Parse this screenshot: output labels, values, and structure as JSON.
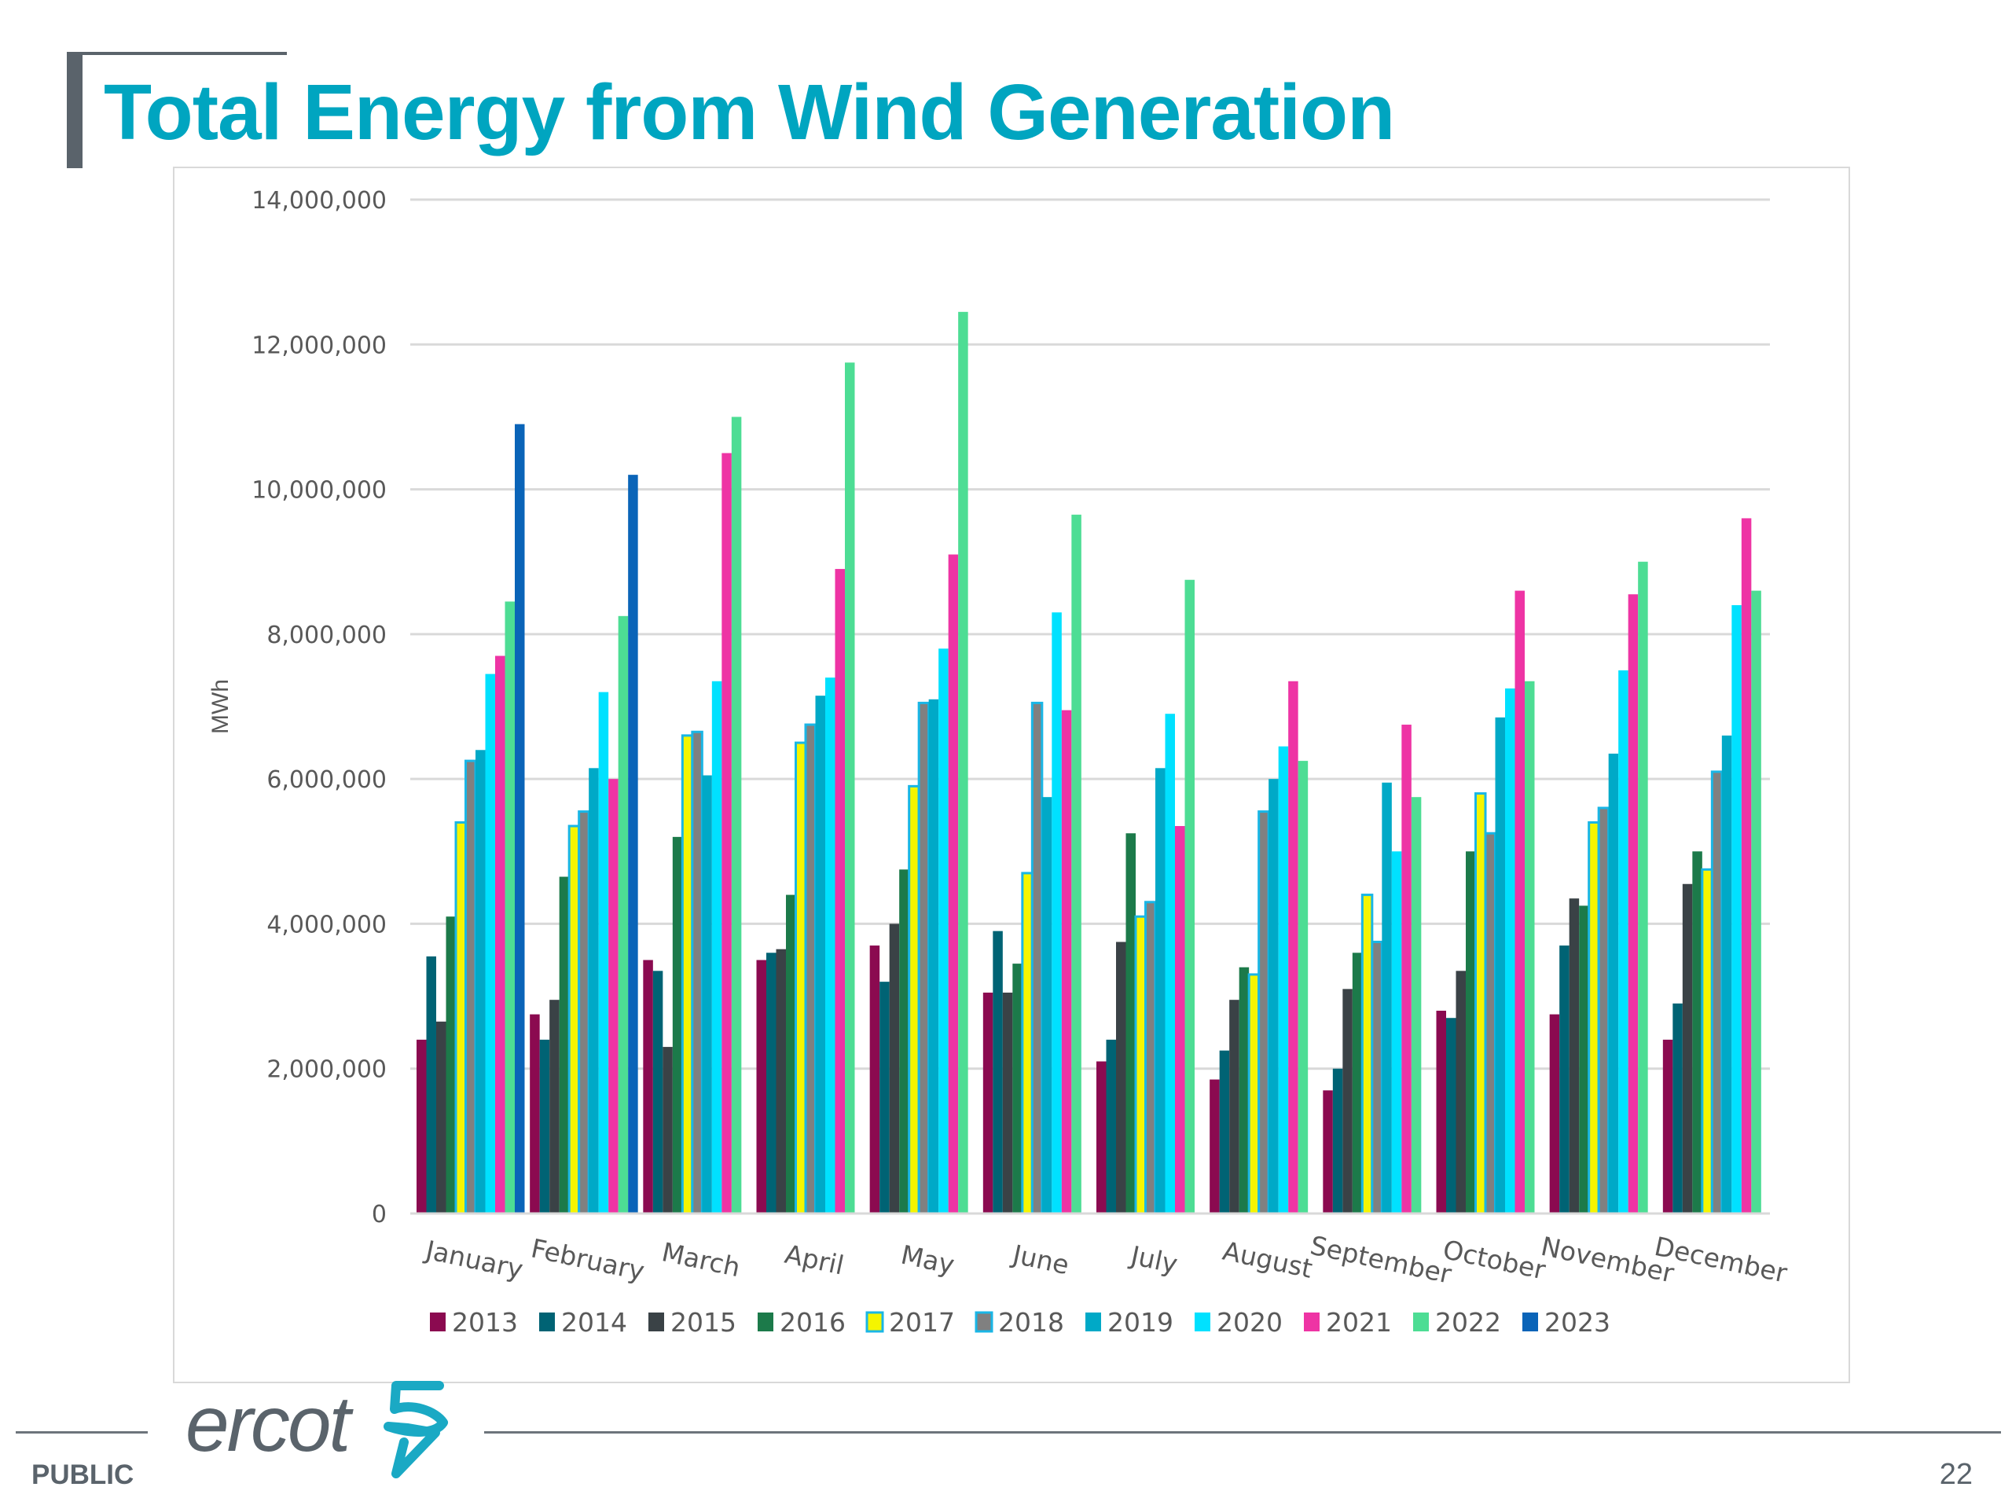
{
  "page": {
    "title": "Total Energy from Wind Generation",
    "classification": "PUBLIC",
    "page_number": "22",
    "logo_text": "ercot"
  },
  "colors": {
    "title": "#00a5c0",
    "logo_mark": "#1aa9c4",
    "text_gray": "#5a636b"
  },
  "chart_data": {
    "type": "bar",
    "title": "",
    "xlabel": "",
    "ylabel": "MWh",
    "ylim": [
      0,
      14000000
    ],
    "yticks": [
      0,
      2000000,
      4000000,
      6000000,
      8000000,
      10000000,
      12000000,
      14000000
    ],
    "ytick_labels": [
      "0",
      "2,000,000",
      "4,000,000",
      "6,000,000",
      "8,000,000",
      "10,000,000",
      "12,000,000",
      "14,000,000"
    ],
    "grid": true,
    "legend_position": "bottom",
    "categories": [
      "January",
      "February",
      "March",
      "April",
      "May",
      "June",
      "July",
      "August",
      "September",
      "October",
      "November",
      "December"
    ],
    "series": [
      {
        "name": "2013",
        "color": "#8b0a50",
        "values": [
          2400000,
          2750000,
          3500000,
          3500000,
          3700000,
          3050000,
          2100000,
          1850000,
          1700000,
          2800000,
          2750000,
          2400000
        ]
      },
      {
        "name": "2014",
        "color": "#006374",
        "values": [
          3550000,
          2400000,
          3350000,
          3600000,
          3200000,
          3900000,
          2400000,
          2250000,
          2000000,
          2700000,
          3700000,
          2900000
        ]
      },
      {
        "name": "2015",
        "color": "#3a4246",
        "values": [
          2650000,
          2950000,
          2300000,
          3650000,
          4000000,
          3050000,
          3750000,
          2950000,
          3100000,
          3350000,
          4350000,
          4550000
        ]
      },
      {
        "name": "2016",
        "color": "#1c7a4a",
        "values": [
          4100000,
          4650000,
          5200000,
          4400000,
          4750000,
          3450000,
          5250000,
          3400000,
          3600000,
          5000000,
          4250000,
          5000000
        ]
      },
      {
        "name": "2017",
        "color": "#f5f500",
        "border": "#19b6e6",
        "values": [
          5400000,
          5350000,
          6600000,
          6500000,
          5900000,
          4700000,
          4100000,
          3300000,
          4400000,
          5800000,
          5400000,
          4750000
        ]
      },
      {
        "name": "2018",
        "color": "#808080",
        "border": "#19b6e6",
        "values": [
          6250000,
          5550000,
          6650000,
          6750000,
          7050000,
          7050000,
          4300000,
          5550000,
          3750000,
          5250000,
          5600000,
          6100000
        ]
      },
      {
        "name": "2019",
        "color": "#00a9c7",
        "values": [
          6400000,
          6150000,
          6050000,
          7150000,
          7100000,
          5750000,
          6150000,
          6000000,
          5950000,
          6850000,
          6350000,
          6600000
        ]
      },
      {
        "name": "2020",
        "color": "#00e1ff",
        "values": [
          7450000,
          7200000,
          7350000,
          7400000,
          7800000,
          8300000,
          6900000,
          6450000,
          5000000,
          7250000,
          7500000,
          8400000
        ]
      },
      {
        "name": "2021",
        "color": "#ee34a4",
        "values": [
          7700000,
          6000000,
          10500000,
          8900000,
          9100000,
          6950000,
          5350000,
          7350000,
          6750000,
          8600000,
          8550000,
          9600000
        ]
      },
      {
        "name": "2022",
        "color": "#4ddd94",
        "values": [
          8450000,
          8250000,
          11000000,
          11750000,
          12450000,
          9650000,
          8750000,
          6250000,
          5750000,
          7350000,
          9000000,
          8600000
        ]
      },
      {
        "name": "2023",
        "color": "#0a64b8",
        "values": [
          10900000,
          10200000,
          null,
          null,
          null,
          null,
          null,
          null,
          null,
          null,
          null,
          null
        ]
      }
    ]
  }
}
